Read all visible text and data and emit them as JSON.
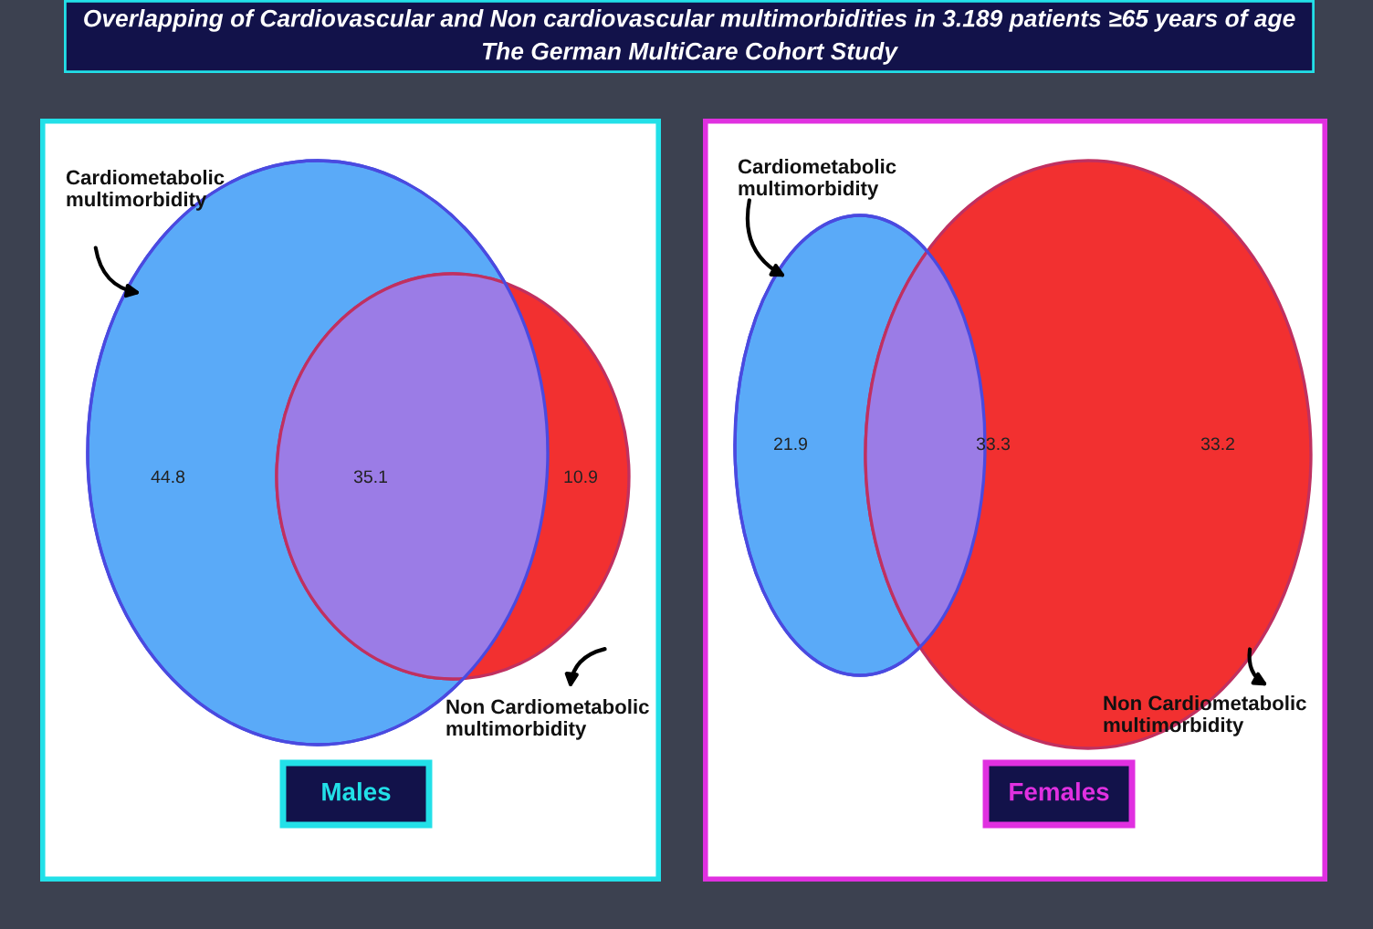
{
  "chart_data": [
    {
      "type": "other",
      "title": "Overlapping of Cardiovascular and Non cardiovascular multimorbidities in 3.189 patients ≥65 years of age",
      "subtitle": "The German MultiCare Cohort Study",
      "xlabel": "Males",
      "data_labels": true,
      "categories": [
        null,
        null,
        null
      ],
      "values": [
        44.8,
        35.1,
        10.9
      ],
      "colors": [
        "#5aaaf8",
        "#9b7ce6",
        "#f23030"
      ],
      "annotations": [
        "Cardiometabolic\nmultimorbidity",
        "Non Cardiometabolic\nmultimorbidity"
      ]
    },
    {
      "type": "other",
      "xlabel": "Females",
      "data_labels": true,
      "categories": [
        null,
        null,
        null
      ],
      "values": [
        21.9,
        33.3,
        33.2
      ],
      "colors": [
        "#5aaaf8",
        "#9b7ce6",
        "#f23030"
      ],
      "annotations": [
        "Cardiometabolic\nmultimorbidity",
        "Non Cardiometabolic\nmultimorbidity"
      ]
    }
  ]
}
